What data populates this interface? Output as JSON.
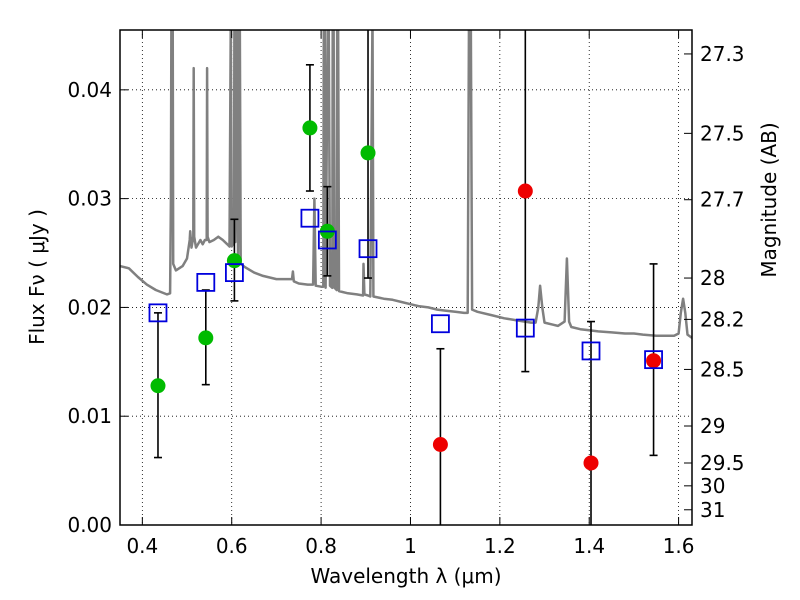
{
  "chart_data": {
    "type": "scatter",
    "xlabel": "Wavelength  λ (μm)",
    "ylabel": "Flux  Fν  ( μJy )",
    "ylabel_right": "Magnitude (AB)",
    "xlim": [
      0.35,
      1.63
    ],
    "ylim": [
      0.0,
      0.0455
    ],
    "grid": true,
    "x_ticks": [
      {
        "value": 0.4,
        "label": "0.4"
      },
      {
        "value": 0.6,
        "label": "0.6"
      },
      {
        "value": 0.8,
        "label": "0.8"
      },
      {
        "value": 1.0,
        "label": "1"
      },
      {
        "value": 1.2,
        "label": "1.2"
      },
      {
        "value": 1.4,
        "label": "1.4"
      },
      {
        "value": 1.6,
        "label": "1.6"
      }
    ],
    "y_ticks": [
      {
        "value": 0.0,
        "label": "0.00"
      },
      {
        "value": 0.01,
        "label": "0.01"
      },
      {
        "value": 0.02,
        "label": "0.02"
      },
      {
        "value": 0.03,
        "label": "0.03"
      },
      {
        "value": 0.04,
        "label": "0.04"
      }
    ],
    "right_ticks": [
      {
        "flux": 0.0433,
        "label": "27.3"
      },
      {
        "flux": 0.036,
        "label": "27.5"
      },
      {
        "flux": 0.0299,
        "label": "27.7"
      },
      {
        "flux": 0.0227,
        "label": "28"
      },
      {
        "flux": 0.0189,
        "label": "28.2"
      },
      {
        "flux": 0.0143,
        "label": "28.5"
      },
      {
        "flux": 0.0091,
        "label": "29"
      },
      {
        "flux": 0.0057,
        "label": "29.5"
      },
      {
        "flux": 0.0036,
        "label": "30"
      },
      {
        "flux": 0.0014,
        "label": "31"
      }
    ],
    "colors": {
      "spectrum": "#808080",
      "green_points": "#00bb00",
      "red_points": "#ee0000",
      "model_squares": "#0000dd",
      "errorbar": "#000000"
    },
    "series": [
      {
        "marker": "circle-green",
        "points": [
          {
            "x": 0.435,
            "y": 0.0128,
            "ylo": 0.0062,
            "yhi": 0.0195
          },
          {
            "x": 0.542,
            "y": 0.0172,
            "ylo": 0.0129,
            "yhi": 0.0216
          },
          {
            "x": 0.606,
            "y": 0.0243,
            "ylo": 0.0206,
            "yhi": 0.0281
          },
          {
            "x": 0.775,
            "y": 0.0365,
            "ylo": 0.0307,
            "yhi": 0.0423
          },
          {
            "x": 0.814,
            "y": 0.027,
            "ylo": 0.0229,
            "yhi": 0.0311
          },
          {
            "x": 0.905,
            "y": 0.0342,
            "ylo": 0.0227,
            "yhi": 0.046
          }
        ]
      },
      {
        "marker": "circle-red",
        "points": [
          {
            "x": 1.067,
            "y": 0.0074,
            "ylo": -0.0014,
            "yhi": 0.0162
          },
          {
            "x": 1.257,
            "y": 0.0307,
            "ylo": 0.0141,
            "yhi": 0.0475
          },
          {
            "x": 1.404,
            "y": 0.0057,
            "ylo": -0.0074,
            "yhi": 0.0187
          },
          {
            "x": 1.544,
            "y": 0.0151,
            "ylo": 0.0064,
            "yhi": 0.024
          }
        ]
      },
      {
        "marker": "square-blue",
        "points": [
          {
            "x": 0.435,
            "y": 0.0195
          },
          {
            "x": 0.542,
            "y": 0.0223
          },
          {
            "x": 0.606,
            "y": 0.0232
          },
          {
            "x": 0.775,
            "y": 0.0282
          },
          {
            "x": 0.814,
            "y": 0.0262
          },
          {
            "x": 0.905,
            "y": 0.0254
          },
          {
            "x": 1.067,
            "y": 0.0185
          },
          {
            "x": 1.257,
            "y": 0.0181
          },
          {
            "x": 1.404,
            "y": 0.016
          },
          {
            "x": 1.544,
            "y": 0.0152
          }
        ]
      }
    ],
    "spectrum": [
      [
        0.35,
        0.0238
      ],
      [
        0.37,
        0.0236
      ],
      [
        0.39,
        0.0228
      ],
      [
        0.41,
        0.0221
      ],
      [
        0.43,
        0.0216
      ],
      [
        0.455,
        0.0212
      ],
      [
        0.462,
        0.0213
      ],
      [
        0.464,
        0.03
      ],
      [
        0.465,
        0.047
      ],
      [
        0.468,
        0.047
      ],
      [
        0.469,
        0.024
      ],
      [
        0.475,
        0.0234
      ],
      [
        0.49,
        0.0238
      ],
      [
        0.5,
        0.0245
      ],
      [
        0.506,
        0.0262
      ],
      [
        0.507,
        0.027
      ],
      [
        0.51,
        0.0255
      ],
      [
        0.514,
        0.0265
      ],
      [
        0.515,
        0.042
      ],
      [
        0.516,
        0.0265
      ],
      [
        0.52,
        0.0255
      ],
      [
        0.53,
        0.0262
      ],
      [
        0.535,
        0.0258
      ],
      [
        0.54,
        0.0262
      ],
      [
        0.544,
        0.0262
      ],
      [
        0.545,
        0.042
      ],
      [
        0.546,
        0.0265
      ],
      [
        0.55,
        0.026
      ],
      [
        0.56,
        0.0262
      ],
      [
        0.57,
        0.0265
      ],
      [
        0.58,
        0.0262
      ],
      [
        0.59,
        0.0258
      ],
      [
        0.595,
        0.0256
      ],
      [
        0.598,
        0.047
      ],
      [
        0.6,
        0.0256
      ],
      [
        0.605,
        0.026
      ],
      [
        0.606,
        0.047
      ],
      [
        0.608,
        0.026
      ],
      [
        0.612,
        0.047
      ],
      [
        0.614,
        0.0245
      ],
      [
        0.618,
        0.047
      ],
      [
        0.62,
        0.024
      ],
      [
        0.63,
        0.0237
      ],
      [
        0.65,
        0.0232
      ],
      [
        0.67,
        0.0229
      ],
      [
        0.7,
        0.0226
      ],
      [
        0.72,
        0.0226
      ],
      [
        0.735,
        0.0226
      ],
      [
        0.737,
        0.0233
      ],
      [
        0.739,
        0.0224
      ],
      [
        0.75,
        0.0222
      ],
      [
        0.77,
        0.0221
      ],
      [
        0.782,
        0.0221
      ],
      [
        0.785,
        0.03
      ],
      [
        0.788,
        0.022
      ],
      [
        0.8,
        0.0219
      ],
      [
        0.805,
        0.0219
      ],
      [
        0.806,
        0.047
      ],
      [
        0.808,
        0.047
      ],
      [
        0.81,
        0.0218
      ],
      [
        0.815,
        0.047
      ],
      [
        0.817,
        0.047
      ],
      [
        0.82,
        0.022
      ],
      [
        0.825,
        0.0218
      ],
      [
        0.826,
        0.047
      ],
      [
        0.828,
        0.047
      ],
      [
        0.83,
        0.0218
      ],
      [
        0.835,
        0.0216
      ],
      [
        0.836,
        0.047
      ],
      [
        0.838,
        0.047
      ],
      [
        0.84,
        0.0215
      ],
      [
        0.86,
        0.0213
      ],
      [
        0.88,
        0.0212
      ],
      [
        0.894,
        0.0211
      ],
      [
        0.895,
        0.024
      ],
      [
        0.897,
        0.0212
      ],
      [
        0.905,
        0.0211
      ],
      [
        0.91,
        0.021
      ],
      [
        0.915,
        0.047
      ],
      [
        0.917,
        0.021
      ],
      [
        0.94,
        0.0208
      ],
      [
        0.96,
        0.0207
      ],
      [
        0.98,
        0.0205
      ],
      [
        1.0,
        0.0203
      ],
      [
        1.02,
        0.0201
      ],
      [
        1.04,
        0.02
      ],
      [
        1.06,
        0.0198
      ],
      [
        1.08,
        0.0197
      ],
      [
        1.1,
        0.0196
      ],
      [
        1.12,
        0.0195
      ],
      [
        1.128,
        0.0195
      ],
      [
        1.131,
        0.047
      ],
      [
        1.135,
        0.047
      ],
      [
        1.138,
        0.0198
      ],
      [
        1.15,
        0.0196
      ],
      [
        1.18,
        0.0193
      ],
      [
        1.21,
        0.019
      ],
      [
        1.24,
        0.0188
      ],
      [
        1.27,
        0.0186
      ],
      [
        1.28,
        0.0186
      ],
      [
        1.286,
        0.02
      ],
      [
        1.29,
        0.022
      ],
      [
        1.295,
        0.02
      ],
      [
        1.3,
        0.0186
      ],
      [
        1.32,
        0.0184
      ],
      [
        1.33,
        0.0183
      ],
      [
        1.345,
        0.0187
      ],
      [
        1.35,
        0.0245
      ],
      [
        1.355,
        0.0187
      ],
      [
        1.36,
        0.0182
      ],
      [
        1.38,
        0.018
      ],
      [
        1.4,
        0.0179
      ],
      [
        1.42,
        0.0178
      ],
      [
        1.45,
        0.0177
      ],
      [
        1.48,
        0.0176
      ],
      [
        1.5,
        0.0176
      ],
      [
        1.52,
        0.0175
      ],
      [
        1.55,
        0.0174
      ],
      [
        1.57,
        0.0174
      ],
      [
        1.59,
        0.0174
      ],
      [
        1.6,
        0.0176
      ],
      [
        1.605,
        0.0195
      ],
      [
        1.61,
        0.0208
      ],
      [
        1.615,
        0.0195
      ],
      [
        1.62,
        0.0175
      ],
      [
        1.63,
        0.0172
      ]
    ]
  }
}
